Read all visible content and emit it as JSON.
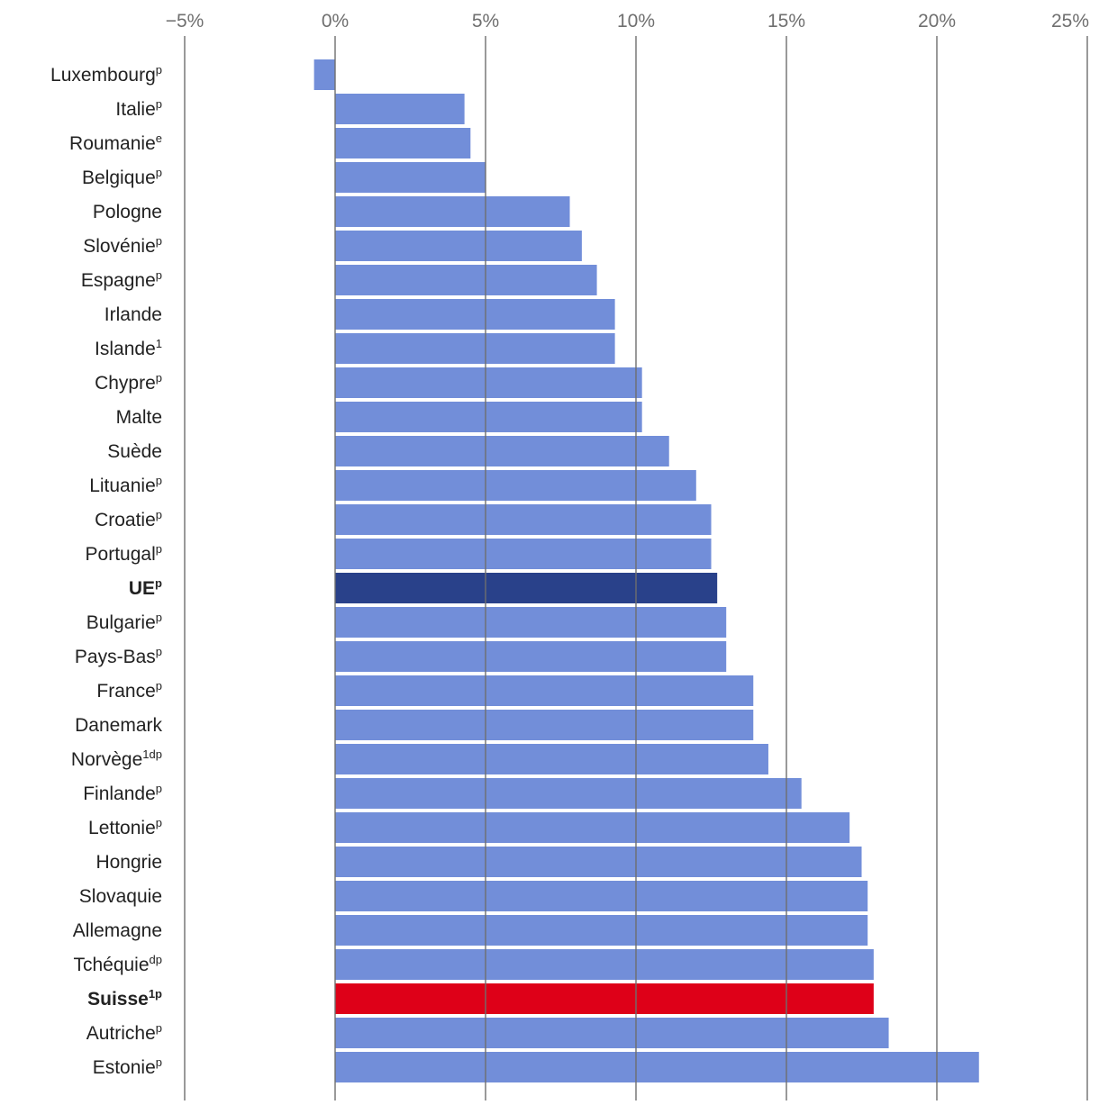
{
  "chart_data": {
    "type": "bar",
    "orientation": "horizontal",
    "title": "",
    "xlabel": "",
    "ylabel": "",
    "xlim": [
      -5,
      25
    ],
    "x_ticks": [
      {
        "value": -5,
        "label": "−5%"
      },
      {
        "value": 0,
        "label": "0%"
      },
      {
        "value": 5,
        "label": "5%"
      },
      {
        "value": 10,
        "label": "10%"
      },
      {
        "value": 15,
        "label": "15%"
      },
      {
        "value": 20,
        "label": "20%"
      },
      {
        "value": 25,
        "label": "25%"
      }
    ],
    "grid": true,
    "legend": "none",
    "colors": {
      "default": "#728ED9",
      "highlight_eu": "#29418A",
      "highlight_ch": "#DE0018"
    },
    "categories": [
      {
        "name": "Luxembourg",
        "note": "p",
        "value": -0.7,
        "highlight": "default",
        "bold": false
      },
      {
        "name": "Italie",
        "note": "p",
        "value": 4.3,
        "highlight": "default",
        "bold": false
      },
      {
        "name": "Roumanie",
        "note": "e",
        "value": 4.5,
        "highlight": "default",
        "bold": false
      },
      {
        "name": "Belgique",
        "note": "p",
        "value": 5.0,
        "highlight": "default",
        "bold": false
      },
      {
        "name": "Pologne",
        "note": "",
        "value": 7.8,
        "highlight": "default",
        "bold": false
      },
      {
        "name": "Slovénie",
        "note": "p",
        "value": 8.2,
        "highlight": "default",
        "bold": false
      },
      {
        "name": "Espagne",
        "note": "p",
        "value": 8.7,
        "highlight": "default",
        "bold": false
      },
      {
        "name": "Irlande",
        "note": "",
        "value": 9.3,
        "highlight": "default",
        "bold": false
      },
      {
        "name": "Islande",
        "note": "1",
        "value": 9.3,
        "highlight": "default",
        "bold": false
      },
      {
        "name": "Chypre",
        "note": "p",
        "value": 10.2,
        "highlight": "default",
        "bold": false
      },
      {
        "name": "Malte",
        "note": "",
        "value": 10.2,
        "highlight": "default",
        "bold": false
      },
      {
        "name": "Suède",
        "note": "",
        "value": 11.1,
        "highlight": "default",
        "bold": false
      },
      {
        "name": "Lituanie",
        "note": "p",
        "value": 12.0,
        "highlight": "default",
        "bold": false
      },
      {
        "name": "Croatie",
        "note": "p",
        "value": 12.5,
        "highlight": "default",
        "bold": false
      },
      {
        "name": "Portugal",
        "note": "p",
        "value": 12.5,
        "highlight": "default",
        "bold": false
      },
      {
        "name": "UE",
        "note": "p",
        "value": 12.7,
        "highlight": "highlight_eu",
        "bold": true
      },
      {
        "name": "Bulgarie",
        "note": "p",
        "value": 13.0,
        "highlight": "default",
        "bold": false
      },
      {
        "name": "Pays-Bas",
        "note": "p",
        "value": 13.0,
        "highlight": "default",
        "bold": false
      },
      {
        "name": "France",
        "note": "p",
        "value": 13.9,
        "highlight": "default",
        "bold": false
      },
      {
        "name": "Danemark",
        "note": "",
        "value": 13.9,
        "highlight": "default",
        "bold": false
      },
      {
        "name": "Norvège",
        "note": "1dp",
        "value": 14.4,
        "highlight": "default",
        "bold": false
      },
      {
        "name": "Finlande",
        "note": "p",
        "value": 15.5,
        "highlight": "default",
        "bold": false
      },
      {
        "name": "Lettonie",
        "note": "p",
        "value": 17.1,
        "highlight": "default",
        "bold": false
      },
      {
        "name": "Hongrie",
        "note": "",
        "value": 17.5,
        "highlight": "default",
        "bold": false
      },
      {
        "name": "Slovaquie",
        "note": "",
        "value": 17.7,
        "highlight": "default",
        "bold": false
      },
      {
        "name": "Allemagne",
        "note": "",
        "value": 17.7,
        "highlight": "default",
        "bold": false
      },
      {
        "name": "Tchéquie",
        "note": "dp",
        "value": 17.9,
        "highlight": "default",
        "bold": false
      },
      {
        "name": "Suisse",
        "note": "1p",
        "value": 17.9,
        "highlight": "highlight_ch",
        "bold": true
      },
      {
        "name": "Autriche",
        "note": "p",
        "value": 18.4,
        "highlight": "default",
        "bold": false
      },
      {
        "name": "Estonie",
        "note": "p",
        "value": 21.4,
        "highlight": "default",
        "bold": false
      }
    ]
  }
}
